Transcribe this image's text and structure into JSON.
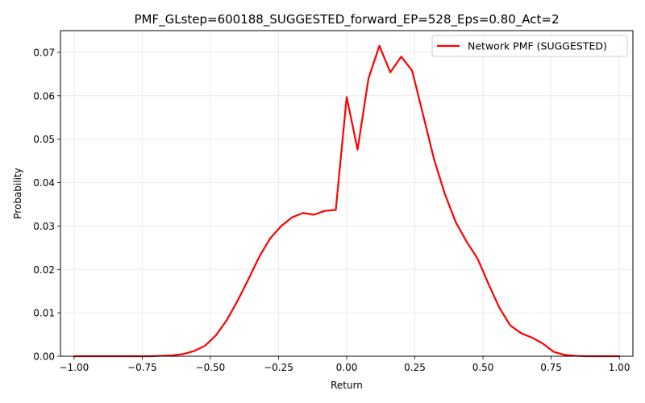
{
  "chart_data": {
    "type": "line",
    "title": "PMF_GLstep=600188_SUGGESTED_forward_EP=528_Eps=0.80_Act=2",
    "xlabel": "Return",
    "ylabel": "Probability",
    "xlim": [
      -1.05,
      1.05
    ],
    "ylim": [
      0.0,
      0.075
    ],
    "xticks": [
      -1.0,
      -0.75,
      -0.5,
      -0.25,
      0.0,
      0.25,
      0.5,
      0.75,
      1.0
    ],
    "xtick_labels": [
      "−1.00",
      "−0.75",
      "−0.50",
      "−0.25",
      "0.00",
      "0.25",
      "0.50",
      "0.75",
      "1.00"
    ],
    "yticks": [
      0.0,
      0.01,
      0.02,
      0.03,
      0.04,
      0.05,
      0.06,
      0.07
    ],
    "ytick_labels": [
      "0.00",
      "0.01",
      "0.02",
      "0.03",
      "0.04",
      "0.05",
      "0.06",
      "0.07"
    ],
    "grid": true,
    "legend_position": "top-right",
    "series": [
      {
        "name": "Network PMF (SUGGESTED)",
        "color": "#ff0000",
        "x": [
          -1.0,
          -0.96,
          -0.92,
          -0.88,
          -0.84,
          -0.8,
          -0.76,
          -0.72,
          -0.68,
          -0.64,
          -0.6,
          -0.56,
          -0.52,
          -0.48,
          -0.44,
          -0.4,
          -0.36,
          -0.32,
          -0.28,
          -0.24,
          -0.2,
          -0.16,
          -0.12,
          -0.08,
          -0.04,
          0.0,
          0.04,
          0.08,
          0.12,
          0.16,
          0.2,
          0.24,
          0.28,
          0.32,
          0.36,
          0.4,
          0.44,
          0.48,
          0.52,
          0.56,
          0.6,
          0.64,
          0.68,
          0.72,
          0.76,
          0.8,
          0.84,
          0.88,
          0.92,
          0.96,
          1.0
        ],
        "y": [
          0.0,
          0.0,
          0.0,
          0.0,
          0.0,
          0.0,
          0.0,
          0.0,
          0.0001,
          0.0002,
          0.0005,
          0.0012,
          0.0024,
          0.0048,
          0.0083,
          0.0128,
          0.0178,
          0.023,
          0.0272,
          0.03,
          0.032,
          0.033,
          0.0326,
          0.0335,
          0.0337,
          0.0597,
          0.0476,
          0.064,
          0.0715,
          0.0654,
          0.069,
          0.0658,
          0.0557,
          0.0455,
          0.0374,
          0.0309,
          0.0264,
          0.0225,
          0.0167,
          0.0112,
          0.0071,
          0.0053,
          0.0043,
          0.0029,
          0.001,
          0.0003,
          0.0001,
          0.0,
          0.0,
          0.0,
          0.0
        ]
      }
    ]
  }
}
